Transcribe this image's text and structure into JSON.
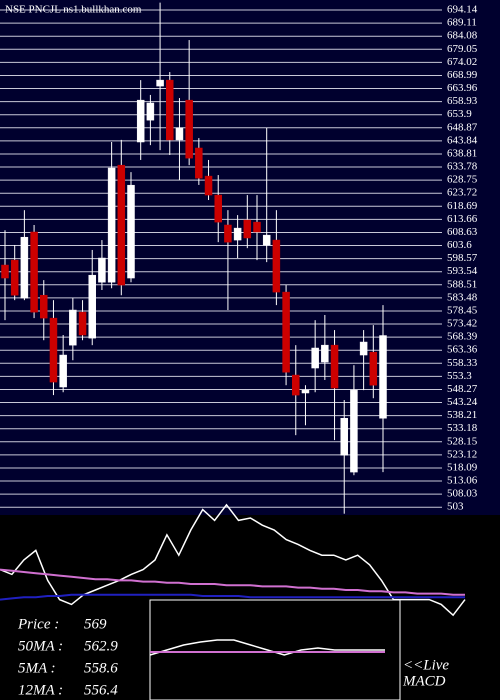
{
  "chart_data": [
    {
      "type": "candlestick",
      "title": "NSE PNCJL ns1.bullkhan.com",
      "ylim": [
        500,
        698
      ],
      "yticks": [
        694.14,
        689.11,
        684.08,
        679.05,
        674.02,
        668.99,
        663.96,
        658.93,
        653.9,
        648.87,
        643.84,
        638.81,
        633.78,
        628.75,
        623.72,
        618.69,
        613.66,
        608.63,
        603.6,
        598.57,
        593.54,
        588.51,
        583.48,
        578.45,
        573.42,
        568.39,
        563.36,
        558.33,
        553.3,
        548.27,
        543.24,
        538.21,
        533.18,
        528.15,
        523.12,
        518.09,
        513.06,
        508.03,
        503
      ],
      "grid": true,
      "up_color": "#ffffff",
      "down_color": "#cc0000",
      "open": [
        596.1,
        598.0,
        583.4,
        608.8,
        584.5,
        575.7,
        549.2,
        565.3,
        578.0,
        568.0,
        589.5,
        589.5,
        634.5,
        591.1,
        643.4,
        651.8,
        664.9,
        667.2,
        644.2,
        659.5,
        641.1,
        630.3,
        623.0,
        611.5,
        605.7,
        613.4,
        612.6,
        603.8,
        605.7,
        585.7,
        553.8,
        546.9,
        556.5,
        558.8,
        565.3,
        523.0,
        516.5,
        561.5,
        562.6,
        537.2
      ],
      "high": [
        609.5,
        603.8,
        617.2,
        611.5,
        590.3,
        582.6,
        569.2,
        583.4,
        582.6,
        601.9,
        605.7,
        643.4,
        644.2,
        631.8,
        667.2,
        661.5,
        697.0,
        670.3,
        660.3,
        682.6,
        644.9,
        636.5,
        630.7,
        617.2,
        615.3,
        623.0,
        623.0,
        648.8,
        617.2,
        588.4,
        565.3,
        549.9,
        574.9,
        576.9,
        571.1,
        544.2,
        557.6,
        571.1,
        573.0,
        580.7
      ],
      "low": [
        574.9,
        582.6,
        582.6,
        575.7,
        567.2,
        546.1,
        547.2,
        559.5,
        567.2,
        565.3,
        586.5,
        587.2,
        584.5,
        589.5,
        636.5,
        642.2,
        640.3,
        638.4,
        628.8,
        634.5,
        626.9,
        621.1,
        604.9,
        578.8,
        598.8,
        602.6,
        598.0,
        597.2,
        580.7,
        549.9,
        530.7,
        534.5,
        547.2,
        551.9,
        528.8,
        500.5,
        515.3,
        548.0,
        544.9,
        516.5
      ],
      "close": [
        591.1,
        584.5,
        606.8,
        578.0,
        575.7,
        551.1,
        561.5,
        578.8,
        569.2,
        592.2,
        598.8,
        633.4,
        588.4,
        626.8,
        659.5,
        658.4,
        667.2,
        644.2,
        648.8,
        637.2,
        629.5,
        623.0,
        612.6,
        604.9,
        610.3,
        606.5,
        608.8,
        607.6,
        585.7,
        554.9,
        546.1,
        548.0,
        564.2,
        565.3,
        548.8,
        537.2,
        548.0,
        566.5,
        549.9,
        569
      ]
    },
    {
      "type": "line",
      "ylim": [
        0,
        100
      ],
      "series": [
        {
          "color": "#ffffff",
          "values": [
            42,
            38,
            50,
            58,
            33,
            17,
            13,
            21,
            25,
            29,
            33,
            38,
            42,
            50,
            71,
            54,
            75,
            92,
            83,
            96,
            83,
            85,
            79,
            75,
            67,
            63,
            58,
            54,
            54,
            50,
            54,
            46,
            33,
            17,
            17,
            17,
            17,
            13,
            4,
            17
          ]
        },
        {
          "color": "#d070d0",
          "values": [
            42,
            41,
            40,
            39,
            38,
            37,
            36,
            35,
            34,
            34,
            33,
            33,
            32,
            32,
            31,
            31,
            30,
            30,
            30,
            29,
            29,
            29,
            28,
            28,
            28,
            27,
            27,
            26,
            26,
            25,
            25,
            24,
            24,
            23,
            23,
            22,
            22,
            22,
            21,
            21
          ]
        },
        {
          "color": "#2020c0",
          "values": [
            17,
            18,
            19,
            19,
            20,
            20,
            21,
            21,
            21,
            21,
            21,
            21,
            21,
            21,
            21,
            21,
            21,
            20,
            20,
            20,
            20,
            19,
            19,
            19,
            19,
            19,
            19,
            19,
            19,
            19,
            19,
            19,
            19,
            19,
            19,
            19,
            19,
            19,
            19,
            19
          ]
        }
      ],
      "stats": [
        {
          "label": "Price :",
          "value": 569
        },
        {
          "label": "50MA :",
          "value": 562.9
        },
        {
          "label": "5MA :",
          "value": 558.6
        },
        {
          "label": "12MA :",
          "value": 556.4
        }
      ]
    },
    {
      "type": "line",
      "title": [
        "<<Live",
        "MACD"
      ],
      "ylim": [
        -1,
        1
      ],
      "series": [
        {
          "color": "#ffffff",
          "values": [
            -0.1,
            0,
            0.1,
            0.16,
            0.2,
            0.2,
            0.1,
            0,
            -0.1,
            0,
            0.04,
            0,
            0,
            0,
            0
          ]
        },
        {
          "color": "#d070d0",
          "values": [
            -0.04,
            -0.04,
            -0.04,
            -0.04,
            -0.04,
            -0.04,
            -0.04,
            -0.04,
            -0.04,
            -0.04,
            -0.04,
            -0.04,
            -0.04,
            -0.04,
            -0.04
          ]
        }
      ]
    }
  ]
}
